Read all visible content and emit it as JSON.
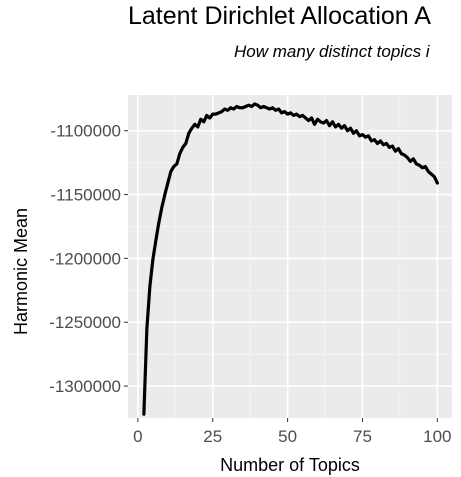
{
  "chart_data": {
    "type": "line",
    "title": "Latent Dirichlet Allocation A",
    "subtitle": "How many distinct topics i",
    "xlabel": "Number of Topics",
    "ylabel": "Harmonic Mean",
    "xlim": [
      -3.3,
      104.9
    ],
    "ylim": [
      -1325000,
      -1072000
    ],
    "xticks": [
      0,
      25,
      50,
      75,
      100
    ],
    "yticks": [
      -1300000,
      -1250000,
      -1200000,
      -1150000,
      -1100000
    ],
    "ytick_labels": [
      "-1300000",
      "-1250000",
      "-1200000",
      "-1150000",
      "-1100000"
    ],
    "grid": true,
    "background": "#ebebeb",
    "line_color": "#000000",
    "series": [
      {
        "x": [
          2,
          3,
          4,
          5,
          6,
          7,
          8,
          9,
          10,
          11,
          12,
          13,
          14,
          15,
          16,
          17,
          18,
          19,
          20,
          21,
          22,
          23,
          24,
          25,
          26,
          27,
          28,
          29,
          30,
          31,
          32,
          33,
          34,
          35,
          36,
          37,
          38,
          39,
          40,
          41,
          42,
          43,
          44,
          45,
          46,
          47,
          48,
          49,
          50,
          51,
          52,
          53,
          54,
          55,
          56,
          57,
          58,
          59,
          60,
          61,
          62,
          63,
          64,
          65,
          66,
          67,
          68,
          69,
          70,
          71,
          72,
          73,
          74,
          75,
          76,
          77,
          78,
          79,
          80,
          81,
          82,
          83,
          84,
          85,
          86,
          87,
          88,
          89,
          90,
          91,
          92,
          93,
          94,
          95,
          96,
          97,
          98,
          99,
          100
        ],
        "y": [
          -1322000,
          -1255000,
          -1222000,
          -1201000,
          -1186000,
          -1172000,
          -1160000,
          -1150000,
          -1141000,
          -1132000,
          -1128000,
          -1126000,
          -1118000,
          -1113000,
          -1110000,
          -1102000,
          -1098000,
          -1095000,
          -1097000,
          -1091000,
          -1093000,
          -1088000,
          -1090000,
          -1087000,
          -1087000,
          -1086000,
          -1085000,
          -1083000,
          -1084000,
          -1082000,
          -1083000,
          -1081000,
          -1082000,
          -1082000,
          -1081000,
          -1080000,
          -1081000,
          -1079000,
          -1080000,
          -1082000,
          -1081000,
          -1082000,
          -1083000,
          -1082000,
          -1084000,
          -1083000,
          -1086000,
          -1085000,
          -1087000,
          -1086000,
          -1088000,
          -1087000,
          -1089000,
          -1088000,
          -1090000,
          -1092000,
          -1090000,
          -1095000,
          -1091000,
          -1093000,
          -1094000,
          -1092000,
          -1096000,
          -1093000,
          -1097000,
          -1095000,
          -1098000,
          -1096000,
          -1100000,
          -1098000,
          -1102000,
          -1100000,
          -1104000,
          -1103000,
          -1105000,
          -1104000,
          -1108000,
          -1107000,
          -1110000,
          -1108000,
          -1111000,
          -1110000,
          -1113000,
          -1112000,
          -1116000,
          -1114000,
          -1118000,
          -1119000,
          -1121000,
          -1124000,
          -1122000,
          -1126000,
          -1127000,
          -1129000,
          -1128000,
          -1132000,
          -1134000,
          -1136000,
          -1141000
        ]
      }
    ]
  }
}
